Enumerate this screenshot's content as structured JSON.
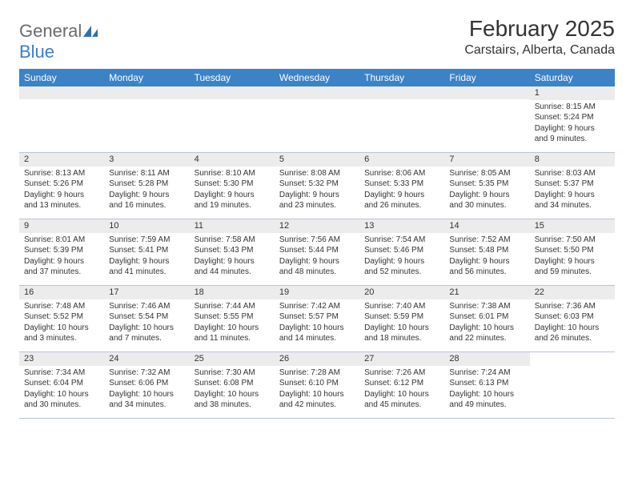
{
  "brand": {
    "general": "General",
    "blue": "Blue"
  },
  "title": "February 2025",
  "location": "Carstairs, Alberta, Canada",
  "weekdays": [
    "Sunday",
    "Monday",
    "Tuesday",
    "Wednesday",
    "Thursday",
    "Friday",
    "Saturday"
  ],
  "colors": {
    "header_bar": "#3b82c7",
    "day_stripe": "#ececec",
    "border": "#b8c5d6",
    "logo_gray": "#6b6b6b",
    "logo_blue": "#3b7fc4"
  },
  "weeks": [
    [
      {
        "num": "",
        "sunrise": "",
        "sunset": "",
        "daylight": ""
      },
      {
        "num": "",
        "sunrise": "",
        "sunset": "",
        "daylight": ""
      },
      {
        "num": "",
        "sunrise": "",
        "sunset": "",
        "daylight": ""
      },
      {
        "num": "",
        "sunrise": "",
        "sunset": "",
        "daylight": ""
      },
      {
        "num": "",
        "sunrise": "",
        "sunset": "",
        "daylight": ""
      },
      {
        "num": "",
        "sunrise": "",
        "sunset": "",
        "daylight": ""
      },
      {
        "num": "1",
        "sunrise": "Sunrise: 8:15 AM",
        "sunset": "Sunset: 5:24 PM",
        "daylight": "Daylight: 9 hours and 9 minutes."
      }
    ],
    [
      {
        "num": "2",
        "sunrise": "Sunrise: 8:13 AM",
        "sunset": "Sunset: 5:26 PM",
        "daylight": "Daylight: 9 hours and 13 minutes."
      },
      {
        "num": "3",
        "sunrise": "Sunrise: 8:11 AM",
        "sunset": "Sunset: 5:28 PM",
        "daylight": "Daylight: 9 hours and 16 minutes."
      },
      {
        "num": "4",
        "sunrise": "Sunrise: 8:10 AM",
        "sunset": "Sunset: 5:30 PM",
        "daylight": "Daylight: 9 hours and 19 minutes."
      },
      {
        "num": "5",
        "sunrise": "Sunrise: 8:08 AM",
        "sunset": "Sunset: 5:32 PM",
        "daylight": "Daylight: 9 hours and 23 minutes."
      },
      {
        "num": "6",
        "sunrise": "Sunrise: 8:06 AM",
        "sunset": "Sunset: 5:33 PM",
        "daylight": "Daylight: 9 hours and 26 minutes."
      },
      {
        "num": "7",
        "sunrise": "Sunrise: 8:05 AM",
        "sunset": "Sunset: 5:35 PM",
        "daylight": "Daylight: 9 hours and 30 minutes."
      },
      {
        "num": "8",
        "sunrise": "Sunrise: 8:03 AM",
        "sunset": "Sunset: 5:37 PM",
        "daylight": "Daylight: 9 hours and 34 minutes."
      }
    ],
    [
      {
        "num": "9",
        "sunrise": "Sunrise: 8:01 AM",
        "sunset": "Sunset: 5:39 PM",
        "daylight": "Daylight: 9 hours and 37 minutes."
      },
      {
        "num": "10",
        "sunrise": "Sunrise: 7:59 AM",
        "sunset": "Sunset: 5:41 PM",
        "daylight": "Daylight: 9 hours and 41 minutes."
      },
      {
        "num": "11",
        "sunrise": "Sunrise: 7:58 AM",
        "sunset": "Sunset: 5:43 PM",
        "daylight": "Daylight: 9 hours and 44 minutes."
      },
      {
        "num": "12",
        "sunrise": "Sunrise: 7:56 AM",
        "sunset": "Sunset: 5:44 PM",
        "daylight": "Daylight: 9 hours and 48 minutes."
      },
      {
        "num": "13",
        "sunrise": "Sunrise: 7:54 AM",
        "sunset": "Sunset: 5:46 PM",
        "daylight": "Daylight: 9 hours and 52 minutes."
      },
      {
        "num": "14",
        "sunrise": "Sunrise: 7:52 AM",
        "sunset": "Sunset: 5:48 PM",
        "daylight": "Daylight: 9 hours and 56 minutes."
      },
      {
        "num": "15",
        "sunrise": "Sunrise: 7:50 AM",
        "sunset": "Sunset: 5:50 PM",
        "daylight": "Daylight: 9 hours and 59 minutes."
      }
    ],
    [
      {
        "num": "16",
        "sunrise": "Sunrise: 7:48 AM",
        "sunset": "Sunset: 5:52 PM",
        "daylight": "Daylight: 10 hours and 3 minutes."
      },
      {
        "num": "17",
        "sunrise": "Sunrise: 7:46 AM",
        "sunset": "Sunset: 5:54 PM",
        "daylight": "Daylight: 10 hours and 7 minutes."
      },
      {
        "num": "18",
        "sunrise": "Sunrise: 7:44 AM",
        "sunset": "Sunset: 5:55 PM",
        "daylight": "Daylight: 10 hours and 11 minutes."
      },
      {
        "num": "19",
        "sunrise": "Sunrise: 7:42 AM",
        "sunset": "Sunset: 5:57 PM",
        "daylight": "Daylight: 10 hours and 14 minutes."
      },
      {
        "num": "20",
        "sunrise": "Sunrise: 7:40 AM",
        "sunset": "Sunset: 5:59 PM",
        "daylight": "Daylight: 10 hours and 18 minutes."
      },
      {
        "num": "21",
        "sunrise": "Sunrise: 7:38 AM",
        "sunset": "Sunset: 6:01 PM",
        "daylight": "Daylight: 10 hours and 22 minutes."
      },
      {
        "num": "22",
        "sunrise": "Sunrise: 7:36 AM",
        "sunset": "Sunset: 6:03 PM",
        "daylight": "Daylight: 10 hours and 26 minutes."
      }
    ],
    [
      {
        "num": "23",
        "sunrise": "Sunrise: 7:34 AM",
        "sunset": "Sunset: 6:04 PM",
        "daylight": "Daylight: 10 hours and 30 minutes."
      },
      {
        "num": "24",
        "sunrise": "Sunrise: 7:32 AM",
        "sunset": "Sunset: 6:06 PM",
        "daylight": "Daylight: 10 hours and 34 minutes."
      },
      {
        "num": "25",
        "sunrise": "Sunrise: 7:30 AM",
        "sunset": "Sunset: 6:08 PM",
        "daylight": "Daylight: 10 hours and 38 minutes."
      },
      {
        "num": "26",
        "sunrise": "Sunrise: 7:28 AM",
        "sunset": "Sunset: 6:10 PM",
        "daylight": "Daylight: 10 hours and 42 minutes."
      },
      {
        "num": "27",
        "sunrise": "Sunrise: 7:26 AM",
        "sunset": "Sunset: 6:12 PM",
        "daylight": "Daylight: 10 hours and 45 minutes."
      },
      {
        "num": "28",
        "sunrise": "Sunrise: 7:24 AM",
        "sunset": "Sunset: 6:13 PM",
        "daylight": "Daylight: 10 hours and 49 minutes."
      },
      {
        "num": "",
        "sunrise": "",
        "sunset": "",
        "daylight": ""
      }
    ]
  ]
}
